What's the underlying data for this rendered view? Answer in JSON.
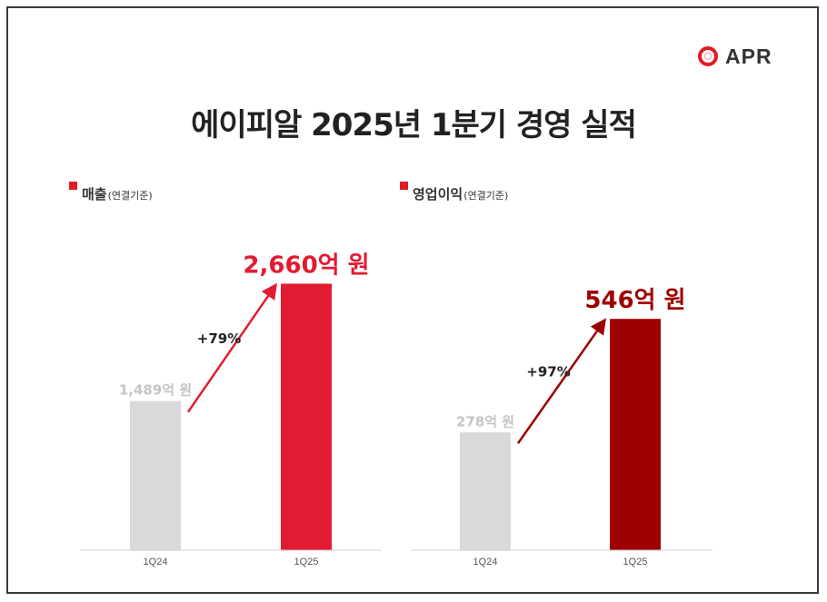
{
  "logo": {
    "text": "APR",
    "color": "#e31b23"
  },
  "title": "에이피알 2025년 1분기 경영 실적",
  "chart_data": [
    {
      "type": "bar",
      "title": "매출",
      "subtitle": "(연결기준)",
      "categories": [
        "1Q24",
        "1Q25"
      ],
      "values": [
        1489,
        2660
      ],
      "unit": "억 원",
      "value_labels": [
        "1,489억 원",
        "2,660억 원"
      ],
      "growth_label": "+79%",
      "colors": [
        "#d9d9dc",
        "#e31b32"
      ],
      "value_label_colors": [
        "#c4c4c8",
        "#e31b32"
      ],
      "ylim": [
        0,
        2800
      ],
      "grid": false
    },
    {
      "type": "bar",
      "title": "영업이익",
      "subtitle": "(연결기준)",
      "categories": [
        "1Q24",
        "1Q25"
      ],
      "values": [
        278,
        546
      ],
      "unit": "억 원",
      "value_labels": [
        "278억 원",
        "546억 원"
      ],
      "growth_label": "+97%",
      "colors": [
        "#d9d9dc",
        "#9e0000"
      ],
      "value_label_colors": [
        "#c4c4c8",
        "#9e0000"
      ],
      "ylim": [
        0,
        600
      ],
      "grid": false
    }
  ]
}
